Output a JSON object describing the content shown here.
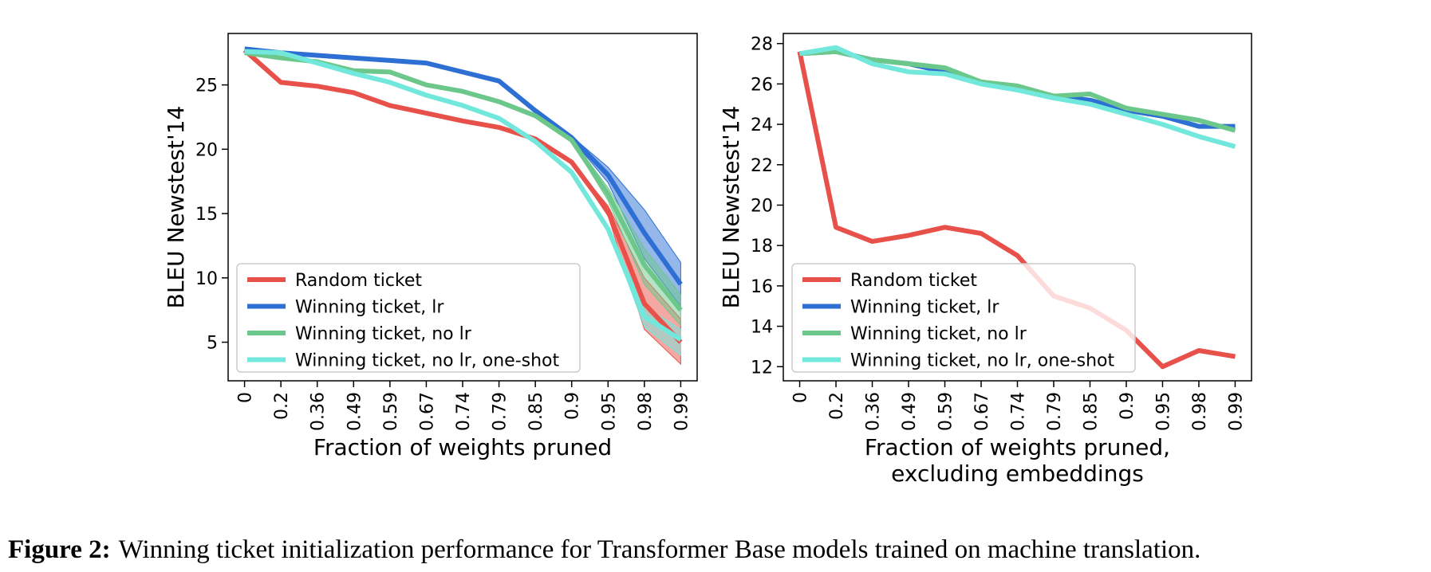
{
  "caption": {
    "label": "Figure 2:",
    "text": "Winning ticket initialization performance for Transformer Base models trained on machine translation."
  },
  "chart_data": [
    {
      "type": "line",
      "ylabel": "BLEU Newstest'14",
      "xlabel": "Fraction of weights pruned",
      "categories": [
        "0",
        "0.2",
        "0.36",
        "0.49",
        "0.59",
        "0.67",
        "0.74",
        "0.79",
        "0.85",
        "0.9",
        "0.95",
        "0.98",
        "0.99"
      ],
      "ylim": [
        2,
        29
      ],
      "yticks": [
        5,
        10,
        15,
        20,
        25
      ],
      "legend_position": "lower-left",
      "series": [
        {
          "name": "Random ticket",
          "color": "#e8514a",
          "values": [
            27.7,
            25.2,
            24.9,
            24.4,
            23.4,
            22.8,
            22.2,
            21.7,
            20.8,
            19.0,
            15.2,
            8.0,
            5.0
          ],
          "lower": [
            27.7,
            25.2,
            24.9,
            24.4,
            23.4,
            22.8,
            22.2,
            21.7,
            20.8,
            19.0,
            14.8,
            6.0,
            3.3
          ],
          "upper": [
            27.7,
            25.2,
            24.9,
            24.4,
            23.4,
            22.8,
            22.2,
            21.7,
            20.8,
            19.0,
            15.6,
            10.0,
            6.8
          ]
        },
        {
          "name": "Winning ticket, lr",
          "color": "#2e6fd3",
          "values": [
            27.8,
            27.5,
            27.3,
            27.1,
            26.9,
            26.7,
            26.0,
            25.3,
            23.0,
            20.9,
            18.0,
            13.5,
            9.5
          ],
          "lower": [
            27.8,
            27.5,
            27.3,
            27.1,
            26.9,
            26.7,
            26.0,
            25.3,
            23.0,
            20.8,
            17.4,
            11.5,
            7.8
          ],
          "upper": [
            27.8,
            27.5,
            27.3,
            27.1,
            26.9,
            26.7,
            26.0,
            25.3,
            23.0,
            21.0,
            18.6,
            15.3,
            11.2
          ]
        },
        {
          "name": "Winning ticket, no lr",
          "color": "#6cc78a",
          "values": [
            27.5,
            27.1,
            26.8,
            26.1,
            26.0,
            25.0,
            24.5,
            23.7,
            22.6,
            20.7,
            16.5,
            11.0,
            7.5
          ],
          "lower": [
            27.5,
            27.1,
            26.8,
            26.1,
            26.0,
            25.0,
            24.5,
            23.7,
            22.6,
            20.6,
            16.0,
            9.5,
            6.3
          ],
          "upper": [
            27.5,
            27.1,
            26.8,
            26.1,
            26.0,
            25.0,
            24.5,
            23.7,
            22.6,
            20.8,
            17.0,
            12.3,
            8.7
          ]
        },
        {
          "name": "Winning ticket, no lr, one-shot",
          "color": "#72e8dc",
          "values": [
            27.6,
            27.5,
            26.7,
            25.9,
            25.2,
            24.2,
            23.4,
            22.4,
            20.6,
            18.2,
            13.8,
            7.0,
            5.2
          ],
          "lower": [
            27.6,
            27.5,
            26.7,
            25.9,
            25.2,
            24.2,
            23.4,
            22.4,
            20.6,
            18.2,
            13.8,
            6.2,
            4.0
          ],
          "upper": [
            27.6,
            27.5,
            26.7,
            25.9,
            25.2,
            24.2,
            23.4,
            22.4,
            20.6,
            18.2,
            13.8,
            7.8,
            6.0
          ]
        }
      ]
    },
    {
      "type": "line",
      "ylabel": "BLEU Newstest'14",
      "xlabel": "Fraction of weights pruned,",
      "xlabel_line2": "excluding embeddings",
      "categories": [
        "0",
        "0.2",
        "0.36",
        "0.49",
        "0.59",
        "0.67",
        "0.74",
        "0.79",
        "0.85",
        "0.9",
        "0.95",
        "0.98",
        "0.99"
      ],
      "ylim": [
        11.3,
        28.5
      ],
      "yticks": [
        12,
        14,
        16,
        18,
        20,
        22,
        24,
        26,
        28
      ],
      "legend_position": "lower-left",
      "series": [
        {
          "name": "Random ticket",
          "color": "#e8514a",
          "values": [
            27.6,
            18.9,
            18.2,
            18.5,
            18.9,
            18.6,
            17.5,
            15.5,
            14.9,
            13.8,
            12.0,
            12.8,
            12.5
          ]
        },
        {
          "name": "Winning ticket, lr",
          "color": "#2e6fd3",
          "values": [
            27.5,
            27.6,
            27.2,
            27.0,
            26.6,
            26.1,
            25.8,
            25.4,
            25.2,
            24.7,
            24.4,
            23.9,
            23.9
          ]
        },
        {
          "name": "Winning ticket, no lr",
          "color": "#6cc78a",
          "values": [
            27.5,
            27.6,
            27.2,
            27.0,
            26.8,
            26.1,
            25.9,
            25.4,
            25.5,
            24.8,
            24.5,
            24.2,
            23.7
          ]
        },
        {
          "name": "Winning ticket, no lr, one-shot",
          "color": "#72e8dc",
          "values": [
            27.5,
            27.8,
            27.0,
            26.6,
            26.5,
            26.0,
            25.7,
            25.3,
            25.0,
            24.5,
            24.0,
            23.4,
            22.9
          ]
        }
      ]
    }
  ]
}
